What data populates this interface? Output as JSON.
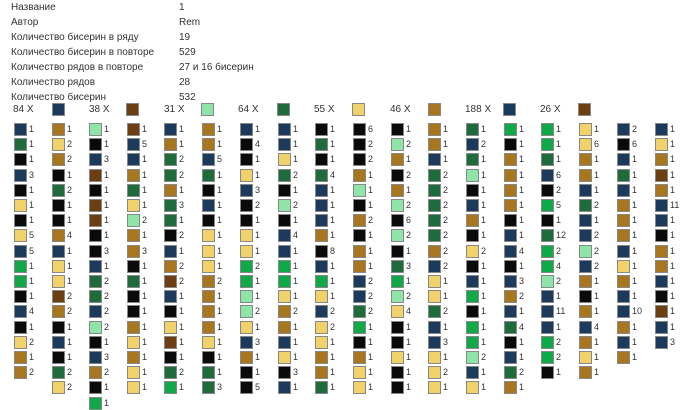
{
  "info": [
    {
      "label": "Название",
      "value": "1"
    },
    {
      "label": "Автор",
      "value": "Rem"
    },
    {
      "label": "Количество бисерин в ряду",
      "value": "19"
    },
    {
      "label": "Количество бисерин в повторе",
      "value": "529"
    },
    {
      "label": "Количество рядов в повторе",
      "value": "27 и 16 бисерин"
    },
    {
      "label": "Количество рядов",
      "value": "28"
    },
    {
      "label": "Количество бисерин",
      "value": "532"
    }
  ],
  "palette": {
    "N": "#1b3a5c",
    "K": "#0a0a0a",
    "G": "#11a84a",
    "L": "#8fe4a8",
    "D": "#1e6b3c",
    "Y": "#f1d16a",
    "O": "#a8761e",
    "B": "#6b3f12"
  },
  "legend": [
    {
      "count": "84 X",
      "color": "N"
    },
    {
      "count": "",
      "color": "K"
    },
    {
      "count": "38 X",
      "color": "G"
    },
    {
      "count": "",
      "color": "B"
    },
    {
      "count": "31 X",
      "color": "L"
    },
    {
      "count": "64 X",
      "color": "D"
    },
    {
      "count": "55 X",
      "color": "Y"
    },
    {
      "count": "46 X",
      "color": "O"
    },
    {
      "count": "188 X",
      "color": "N"
    },
    {
      "count": "26 X",
      "color": "B"
    }
  ],
  "columns": [
    [
      [
        "N",
        "1"
      ],
      [
        "D",
        "1"
      ],
      [
        "K",
        "1"
      ],
      [
        "N",
        "3"
      ],
      [
        "K",
        "1"
      ],
      [
        "Y",
        "1"
      ],
      [
        "K",
        "1"
      ],
      [
        "Y",
        "5"
      ],
      [
        "N",
        "5"
      ],
      [
        "G",
        "1"
      ],
      [
        "G",
        "1"
      ],
      [
        "K",
        "1"
      ],
      [
        "N",
        "4"
      ],
      [
        "K",
        "1"
      ],
      [
        "Y",
        "2"
      ],
      [
        "O",
        "1"
      ],
      [
        "O",
        "2"
      ]
    ],
    [
      [
        "O",
        "1"
      ],
      [
        "Y",
        "2"
      ],
      [
        "O",
        "2"
      ],
      [
        "K",
        "1"
      ],
      [
        "D",
        "2"
      ],
      [
        "K",
        "1"
      ],
      [
        "K",
        "1"
      ],
      [
        "O",
        "4"
      ],
      [
        "N",
        "1"
      ],
      [
        "Y",
        "1"
      ],
      [
        "Y",
        "1"
      ],
      [
        "B",
        "2"
      ],
      [
        "O",
        "2"
      ],
      [
        "K",
        "1"
      ],
      [
        "N",
        "1"
      ],
      [
        "K",
        "1"
      ],
      [
        "D",
        "2"
      ],
      [
        "Y",
        "2"
      ]
    ],
    [
      [
        "L",
        "1"
      ],
      [
        "K",
        "1"
      ],
      [
        "N",
        "3"
      ],
      [
        "B",
        "1"
      ],
      [
        "K",
        "1"
      ],
      [
        "B",
        "1"
      ],
      [
        "B",
        "1"
      ],
      [
        "K",
        "1"
      ],
      [
        "K",
        "3"
      ],
      [
        "N",
        "1"
      ],
      [
        "D",
        "2"
      ],
      [
        "D",
        "2"
      ],
      [
        "N",
        "2"
      ],
      [
        "L",
        "2"
      ],
      [
        "K",
        "1"
      ],
      [
        "N",
        "3"
      ],
      [
        "O",
        "2"
      ],
      [
        "K",
        "1"
      ],
      [
        "G",
        "1"
      ]
    ],
    [
      [
        "B",
        "1"
      ],
      [
        "N",
        "5"
      ],
      [
        "N",
        "1"
      ],
      [
        "O",
        "1"
      ],
      [
        "D",
        "1"
      ],
      [
        "Y",
        "1"
      ],
      [
        "L",
        "2"
      ],
      [
        "O",
        "1"
      ],
      [
        "O",
        "3"
      ],
      [
        "K",
        "1"
      ],
      [
        "D",
        "1"
      ],
      [
        "K",
        "1"
      ],
      [
        "K",
        "1"
      ],
      [
        "O",
        "1"
      ],
      [
        "Y",
        "1"
      ],
      [
        "O",
        "1"
      ],
      [
        "Y",
        "1"
      ],
      [
        "Y",
        "1"
      ]
    ],
    [
      [
        "N",
        "1"
      ],
      [
        "O",
        "1"
      ],
      [
        "D",
        "2"
      ],
      [
        "D",
        "2"
      ],
      [
        "O",
        "1"
      ],
      [
        "D",
        "3"
      ],
      [
        "D",
        "1"
      ],
      [
        "K",
        "2"
      ],
      [
        "N",
        "1"
      ],
      [
        "O",
        "2"
      ],
      [
        "B",
        "2"
      ],
      [
        "N",
        "1"
      ],
      [
        "K",
        "1"
      ],
      [
        "Y",
        "1"
      ],
      [
        "B",
        "1"
      ],
      [
        "K",
        "1"
      ],
      [
        "D",
        "2"
      ],
      [
        "G",
        "1"
      ]
    ],
    [
      [
        "O",
        "1"
      ],
      [
        "O",
        "1"
      ],
      [
        "N",
        "5"
      ],
      [
        "D",
        "1"
      ],
      [
        "K",
        "1"
      ],
      [
        "N",
        "1"
      ],
      [
        "K",
        "1"
      ],
      [
        "Y",
        "1"
      ],
      [
        "Y",
        "1"
      ],
      [
        "Y",
        "1"
      ],
      [
        "O",
        "2"
      ],
      [
        "O",
        "1"
      ],
      [
        "O",
        "1"
      ],
      [
        "O",
        "1"
      ],
      [
        "Y",
        "1"
      ],
      [
        "K",
        "1"
      ],
      [
        "D",
        "1"
      ],
      [
        "D",
        "3"
      ]
    ],
    [
      [
        "N",
        "1"
      ],
      [
        "K",
        "4"
      ],
      [
        "K",
        "1"
      ],
      [
        "Y",
        "1"
      ],
      [
        "N",
        "3"
      ],
      [
        "K",
        "2"
      ],
      [
        "K",
        "1"
      ],
      [
        "Y",
        "1"
      ],
      [
        "Y",
        "1"
      ],
      [
        "G",
        "2"
      ],
      [
        "G",
        "1"
      ],
      [
        "L",
        "1"
      ],
      [
        "L",
        "2"
      ],
      [
        "Y",
        "1"
      ],
      [
        "N",
        "3"
      ],
      [
        "O",
        "1"
      ],
      [
        "K",
        "1"
      ],
      [
        "K",
        "5"
      ]
    ],
    [
      [
        "N",
        "1"
      ],
      [
        "N",
        "1"
      ],
      [
        "Y",
        "1"
      ],
      [
        "D",
        "2"
      ],
      [
        "K",
        "1"
      ],
      [
        "L",
        "2"
      ],
      [
        "K",
        "1"
      ],
      [
        "N",
        "4"
      ],
      [
        "N",
        "1"
      ],
      [
        "G",
        "1"
      ],
      [
        "G",
        "1"
      ],
      [
        "Y",
        "1"
      ],
      [
        "O",
        "2"
      ],
      [
        "O",
        "1"
      ],
      [
        "N",
        "1"
      ],
      [
        "Y",
        "1"
      ],
      [
        "K",
        "3"
      ],
      [
        "N",
        "1"
      ]
    ],
    [
      [
        "K",
        "1"
      ],
      [
        "D",
        "1"
      ],
      [
        "K",
        "1"
      ],
      [
        "D",
        "4"
      ],
      [
        "N",
        "1"
      ],
      [
        "N",
        "1"
      ],
      [
        "N",
        "1"
      ],
      [
        "O",
        "1"
      ],
      [
        "K",
        "8"
      ],
      [
        "N",
        "1"
      ],
      [
        "G",
        "1"
      ],
      [
        "Y",
        "1"
      ],
      [
        "N",
        "2"
      ],
      [
        "Y",
        "2"
      ],
      [
        "Y",
        "1"
      ],
      [
        "O",
        "1"
      ],
      [
        "O",
        "1"
      ],
      [
        "D",
        "1"
      ]
    ],
    [
      [
        "K",
        "6"
      ],
      [
        "K",
        "2"
      ],
      [
        "K",
        "2"
      ],
      [
        "O",
        "1"
      ],
      [
        "L",
        "1"
      ],
      [
        "K",
        "1"
      ],
      [
        "O",
        "2"
      ],
      [
        "K",
        "1"
      ],
      [
        "O",
        "1"
      ],
      [
        "O",
        "1"
      ],
      [
        "N",
        "2"
      ],
      [
        "N",
        "2"
      ],
      [
        "D",
        "2"
      ],
      [
        "G",
        "1"
      ],
      [
        "K",
        "1"
      ],
      [
        "O",
        "1"
      ],
      [
        "Y",
        "1"
      ],
      [
        "Y",
        "1"
      ]
    ],
    [
      [
        "K",
        "1"
      ],
      [
        "L",
        "2"
      ],
      [
        "O",
        "1"
      ],
      [
        "K",
        "2"
      ],
      [
        "O",
        "1"
      ],
      [
        "L",
        "2"
      ],
      [
        "K",
        "6"
      ],
      [
        "L",
        "2"
      ],
      [
        "K",
        "1"
      ],
      [
        "D",
        "3"
      ],
      [
        "G",
        "1"
      ],
      [
        "L",
        "2"
      ],
      [
        "Y",
        "4"
      ],
      [
        "K",
        "1"
      ],
      [
        "K",
        "1"
      ],
      [
        "Y",
        "1"
      ],
      [
        "K",
        "1"
      ],
      [
        "K",
        "1"
      ]
    ],
    [
      [
        "O",
        "1"
      ],
      [
        "O",
        "1"
      ],
      [
        "N",
        "1"
      ],
      [
        "D",
        "2"
      ],
      [
        "D",
        "2"
      ],
      [
        "D",
        "2"
      ],
      [
        "D",
        "2"
      ],
      [
        "D",
        "2"
      ],
      [
        "O",
        "2"
      ],
      [
        "N",
        "2"
      ],
      [
        "Y",
        "1"
      ],
      [
        "Y",
        "1"
      ],
      [
        "D",
        "2"
      ],
      [
        "N",
        "1"
      ],
      [
        "N",
        "3"
      ],
      [
        "Y",
        "1"
      ],
      [
        "Y",
        "2"
      ],
      [
        "Y",
        "1"
      ]
    ],
    [
      [
        "D",
        "1"
      ],
      [
        "N",
        "2"
      ],
      [
        "D",
        "1"
      ],
      [
        "L",
        "1"
      ],
      [
        "K",
        "1"
      ],
      [
        "N",
        "1"
      ],
      [
        "O",
        "1"
      ],
      [
        "K",
        "1"
      ],
      [
        "Y",
        "2"
      ],
      [
        "K",
        "1"
      ],
      [
        "N",
        "1"
      ],
      [
        "G",
        "1"
      ],
      [
        "K",
        "1"
      ],
      [
        "G",
        "1"
      ],
      [
        "G",
        "1"
      ],
      [
        "L",
        "2"
      ],
      [
        "N",
        "1"
      ],
      [
        "Y",
        "1"
      ]
    ],
    [
      [
        "G",
        "1"
      ],
      [
        "K",
        "1"
      ],
      [
        "O",
        "1"
      ],
      [
        "O",
        "1"
      ],
      [
        "O",
        "1"
      ],
      [
        "O",
        "1"
      ],
      [
        "K",
        "1"
      ],
      [
        "N",
        "1"
      ],
      [
        "N",
        "4"
      ],
      [
        "K",
        "1"
      ],
      [
        "N",
        "3"
      ],
      [
        "O",
        "2"
      ],
      [
        "N",
        "1"
      ],
      [
        "D",
        "4"
      ],
      [
        "K",
        "1"
      ],
      [
        "N",
        "1"
      ],
      [
        "D",
        "2"
      ],
      [
        "O",
        "1"
      ]
    ],
    [
      [
        "G",
        "1"
      ],
      [
        "G",
        "1"
      ],
      [
        "D",
        "1"
      ],
      [
        "N",
        "6"
      ],
      [
        "K",
        "2"
      ],
      [
        "G",
        "5"
      ],
      [
        "K",
        "1"
      ],
      [
        "D",
        "12"
      ],
      [
        "G",
        "2"
      ],
      [
        "G",
        "4"
      ],
      [
        "L",
        "2"
      ],
      [
        "N",
        "1"
      ],
      [
        "N",
        "11"
      ],
      [
        "N",
        "1"
      ],
      [
        "G",
        "2"
      ],
      [
        "G",
        "2"
      ],
      [
        "K",
        "1"
      ]
    ],
    [
      [
        "Y",
        "1"
      ],
      [
        "Y",
        "6"
      ],
      [
        "O",
        "1"
      ],
      [
        "O",
        "1"
      ],
      [
        "N",
        "1"
      ],
      [
        "D",
        "2"
      ],
      [
        "N",
        "1"
      ],
      [
        "N",
        "2"
      ],
      [
        "L",
        "2"
      ],
      [
        "N",
        "2"
      ],
      [
        "O",
        "1"
      ],
      [
        "K",
        "1"
      ],
      [
        "O",
        "1"
      ],
      [
        "N",
        "4"
      ],
      [
        "O",
        "1"
      ],
      [
        "Y",
        "1"
      ],
      [
        "O",
        "1"
      ]
    ],
    [
      [
        "N",
        "2"
      ],
      [
        "K",
        "6"
      ],
      [
        "N",
        "1"
      ],
      [
        "D",
        "1"
      ],
      [
        "N",
        "1"
      ],
      [
        "O",
        "1"
      ],
      [
        "O",
        "1"
      ],
      [
        "O",
        "1"
      ],
      [
        "N",
        "1"
      ],
      [
        "Y",
        "1"
      ],
      [
        "O",
        "1"
      ],
      [
        "N",
        "1"
      ],
      [
        "N",
        "10"
      ],
      [
        "O",
        "1"
      ],
      [
        "N",
        "1"
      ],
      [
        "O",
        "1"
      ]
    ],
    [
      [
        "N",
        "1"
      ],
      [
        "Y",
        "1"
      ],
      [
        "O",
        "1"
      ],
      [
        "B",
        "1"
      ],
      [
        "O",
        "1"
      ],
      [
        "N",
        "11"
      ],
      [
        "N",
        "1"
      ],
      [
        "K",
        "1"
      ],
      [
        "O",
        "1"
      ],
      [
        "O",
        "1"
      ],
      [
        "N",
        "1"
      ],
      [
        "K",
        "1"
      ],
      [
        "B",
        "1"
      ],
      [
        "N",
        "1"
      ],
      [
        "N",
        "3"
      ]
    ]
  ]
}
